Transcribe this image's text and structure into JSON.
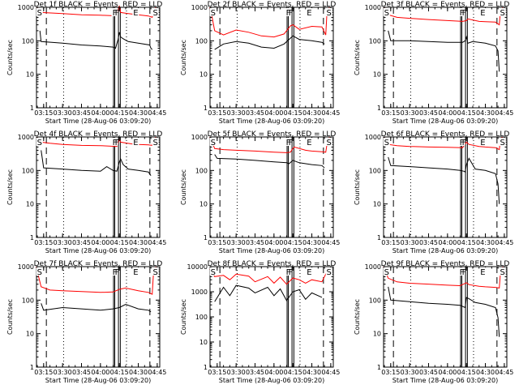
{
  "figure": {
    "x_ticks": [
      "03:15",
      "03:30",
      "03:45",
      "04:00",
      "04:15",
      "04:30",
      "04:45"
    ],
    "y_ticks": [
      "1",
      "10",
      "100",
      "1000"
    ],
    "y_ticks_det8": [
      "1",
      "10",
      "100",
      "1000",
      "10000"
    ],
    "xlabel": "Start Time (28-Aug-06 03:09:20)",
    "ylabel": "Counts/sec",
    "flag_labels": [
      "S",
      "F",
      "E",
      "S"
    ],
    "colors": {
      "events": "#000000",
      "lld": "#ff0000"
    }
  },
  "chart_data": [
    {
      "type": "line",
      "title": "Det 1f BLACK = Events, RED = LLD",
      "xlabel": "Start Time (28-Aug-06 03:09:20)",
      "ylabel": "Counts/sec",
      "yscale": "log",
      "ylim": [
        1,
        1000
      ],
      "x_start": "03:09:20",
      "x_end": "04:47:00",
      "series": [
        {
          "name": "Events",
          "x": [
            "03:12",
            "03:13",
            "03:30",
            "03:45",
            "04:00",
            "04:10",
            "04:12",
            "04:14",
            "04:15",
            "04:16",
            "04:18",
            "04:22",
            "04:30",
            "04:39",
            "04:40",
            "04:41"
          ],
          "y": [
            200,
            95,
            85,
            75,
            70,
            65,
            60,
            110,
            180,
            130,
            115,
            95,
            85,
            75,
            60,
            55
          ]
        },
        {
          "name": "LLD",
          "x": [
            "03:09",
            "03:11",
            "03:13",
            "03:30",
            "03:45",
            "04:00",
            "04:10",
            "04:13",
            "04:15",
            "04:16",
            "04:22",
            "04:30",
            "04:38",
            "04:41",
            "04:42",
            "04:43",
            "04:44"
          ],
          "y": [
            1000,
            900,
            700,
            650,
            600,
            580,
            560,
            600,
            1100,
            700,
            650,
            600,
            550,
            500,
            700,
            900,
            1000
          ]
        }
      ]
    },
    {
      "type": "line",
      "title": "Det 2f BLACK = Events, RED = LLD",
      "xlabel": "Start Time (28-Aug-06 03:09:20)",
      "ylabel": "Counts/sec",
      "yscale": "log",
      "ylim": [
        1,
        1000
      ],
      "x_start": "03:09:20",
      "x_end": "04:47:00",
      "series": [
        {
          "name": "Events",
          "x": [
            "03:13",
            "03:20",
            "03:30",
            "03:40",
            "03:50",
            "04:00",
            "04:08",
            "04:13",
            "04:15",
            "04:20",
            "04:30",
            "04:38",
            "04:40"
          ],
          "y": [
            55,
            80,
            95,
            85,
            65,
            60,
            80,
            120,
            140,
            110,
            100,
            90,
            80
          ]
        },
        {
          "name": "LLD",
          "x": [
            "03:09",
            "03:11",
            "03:13",
            "03:20",
            "03:30",
            "03:40",
            "03:50",
            "04:00",
            "04:08",
            "04:13",
            "04:15",
            "04:20",
            "04:30",
            "04:38",
            "04:41",
            "04:42",
            "04:44"
          ],
          "y": [
            1000,
            500,
            200,
            150,
            210,
            180,
            140,
            130,
            160,
            280,
            300,
            220,
            270,
            260,
            150,
            700,
            1000
          ]
        }
      ]
    },
    {
      "type": "line",
      "title": "Det 3f BLACK = Events, RED = LLD",
      "xlabel": "Start Time (28-Aug-06 03:09:20)",
      "ylabel": "Counts/sec",
      "yscale": "log",
      "ylim": [
        1,
        1000
      ],
      "x_start": "03:09:20",
      "x_end": "04:47:00",
      "series": [
        {
          "name": "Events",
          "x": [
            "03:13",
            "03:15",
            "03:30",
            "03:45",
            "04:00",
            "04:12",
            "04:14",
            "04:15",
            "04:16",
            "04:20",
            "04:30",
            "04:38",
            "04:40",
            "04:41"
          ],
          "y": [
            200,
            100,
            100,
            95,
            90,
            90,
            100,
            130,
            85,
            95,
            85,
            70,
            50,
            12
          ]
        },
        {
          "name": "LLD",
          "x": [
            "03:09",
            "03:11",
            "03:13",
            "03:20",
            "03:30",
            "03:45",
            "04:00",
            "04:12",
            "04:15",
            "04:16",
            "04:25",
            "04:30",
            "04:38",
            "04:41",
            "04:42",
            "04:44"
          ],
          "y": [
            1000,
            900,
            600,
            500,
            470,
            430,
            400,
            380,
            400,
            450,
            380,
            370,
            360,
            300,
            800,
            1000
          ]
        }
      ]
    },
    {
      "type": "line",
      "title": "Det 4f BLACK = Events, RED = LLD",
      "xlabel": "Start Time (28-Aug-06 03:09:20)",
      "ylabel": "Counts/sec",
      "yscale": "log",
      "ylim": [
        1,
        1000
      ],
      "x_start": "03:09:20",
      "x_end": "04:47:00",
      "series": [
        {
          "name": "Events",
          "x": [
            "03:13",
            "03:15",
            "03:30",
            "03:45",
            "04:00",
            "04:05",
            "04:10",
            "04:13",
            "04:15",
            "04:16",
            "04:18",
            "04:22",
            "04:30",
            "04:38",
            "04:40"
          ],
          "y": [
            400,
            120,
            110,
            100,
            95,
            130,
            100,
            95,
            180,
            220,
            150,
            110,
            100,
            90,
            70
          ]
        },
        {
          "name": "LLD",
          "x": [
            "03:09",
            "03:11",
            "03:13",
            "03:20",
            "03:30",
            "03:45",
            "04:00",
            "04:13",
            "04:15",
            "04:16",
            "04:25",
            "04:30",
            "04:38",
            "04:41",
            "04:42",
            "04:44"
          ],
          "y": [
            1000,
            900,
            700,
            650,
            600,
            560,
            550,
            520,
            850,
            700,
            620,
            600,
            580,
            560,
            800,
            1000
          ]
        }
      ]
    },
    {
      "type": "line",
      "title": "Det 5f BLACK = Events, RED = LLD",
      "xlabel": "Start Time (28-Aug-06 03:09:20)",
      "ylabel": "Counts/sec",
      "yscale": "log",
      "ylim": [
        1,
        1000
      ],
      "x_start": "03:09:20",
      "x_end": "04:47:00",
      "series": [
        {
          "name": "Events",
          "x": [
            "03:13",
            "03:15",
            "03:30",
            "03:45",
            "04:00",
            "04:10",
            "04:12",
            "04:15",
            "04:20",
            "04:30",
            "04:38",
            "04:40"
          ],
          "y": [
            300,
            230,
            220,
            200,
            180,
            170,
            160,
            200,
            170,
            150,
            140,
            120
          ]
        },
        {
          "name": "LLD",
          "x": [
            "03:09",
            "03:11",
            "03:13",
            "03:20",
            "03:30",
            "03:45",
            "04:00",
            "04:10",
            "04:13",
            "04:15",
            "04:16",
            "04:25",
            "04:30",
            "04:38",
            "04:41",
            "04:42",
            "04:44"
          ],
          "y": [
            1000,
            700,
            450,
            420,
            400,
            380,
            350,
            340,
            350,
            450,
            500,
            400,
            380,
            360,
            350,
            600,
            1000
          ]
        }
      ]
    },
    {
      "type": "line",
      "title": "Det 6f BLACK = Events, RED = LLD",
      "xlabel": "Start Time (28-Aug-06 03:09:20)",
      "ylabel": "Counts/sec",
      "yscale": "log",
      "ylim": [
        1,
        1000
      ],
      "x_start": "03:09:20",
      "x_end": "04:47:00",
      "series": [
        {
          "name": "Events",
          "x": [
            "03:13",
            "03:15",
            "03:30",
            "03:45",
            "04:00",
            "04:10",
            "04:13",
            "04:14",
            "04:15",
            "04:17",
            "04:22",
            "04:30",
            "04:38",
            "04:40",
            "04:41"
          ],
          "y": [
            250,
            140,
            130,
            120,
            110,
            100,
            95,
            90,
            150,
            230,
            110,
            100,
            80,
            40,
            10
          ]
        },
        {
          "name": "LLD",
          "x": [
            "03:09",
            "03:11",
            "03:13",
            "03:20",
            "03:30",
            "03:45",
            "04:00",
            "04:12",
            "04:15",
            "04:17",
            "04:25",
            "04:30",
            "04:38",
            "04:41",
            "04:42",
            "04:44"
          ],
          "y": [
            1000,
            900,
            600,
            550,
            520,
            500,
            490,
            480,
            700,
            600,
            520,
            500,
            480,
            420,
            900,
            1000
          ]
        }
      ]
    },
    {
      "type": "line",
      "title": "Det 7f BLACK = Events, RED = LLD",
      "xlabel": "Start Time (28-Aug-06 03:09:20)",
      "ylabel": "Counts/sec",
      "yscale": "log",
      "ylim": [
        1,
        1000
      ],
      "x_start": "03:09:20",
      "x_end": "04:47:00",
      "series": [
        {
          "name": "Events",
          "x": [
            "03:13",
            "03:15",
            "03:30",
            "03:45",
            "04:00",
            "04:10",
            "04:15",
            "04:20",
            "04:30",
            "04:38",
            "04:40"
          ],
          "y": [
            80,
            50,
            60,
            55,
            50,
            55,
            60,
            75,
            55,
            50,
            45
          ]
        },
        {
          "name": "LLD",
          "x": [
            "03:09",
            "03:11",
            "03:13",
            "03:20",
            "03:30",
            "03:45",
            "04:00",
            "04:10",
            "04:15",
            "04:20",
            "04:30",
            "04:38",
            "04:41",
            "04:42",
            "04:44"
          ],
          "y": [
            1000,
            500,
            250,
            200,
            190,
            180,
            170,
            175,
            210,
            230,
            190,
            170,
            150,
            600,
            1000
          ]
        }
      ]
    },
    {
      "type": "line",
      "title": "Det 8f BLACK = Events, RED = LLD",
      "xlabel": "Start Time (28-Aug-06 03:09:20)",
      "ylabel": "Counts/sec",
      "yscale": "log",
      "ylim": [
        1,
        10000
      ],
      "x_start": "03:09:20",
      "x_end": "04:47:00",
      "series": [
        {
          "name": "Events",
          "x": [
            "03:13",
            "03:20",
            "03:25",
            "03:30",
            "03:40",
            "03:45",
            "03:55",
            "04:00",
            "04:05",
            "04:10",
            "04:15",
            "04:20",
            "04:25",
            "04:30",
            "04:38"
          ],
          "y": [
            400,
            1500,
            700,
            1800,
            1400,
            900,
            1500,
            700,
            1300,
            450,
            1000,
            1200,
            500,
            900,
            600
          ]
        },
        {
          "name": "LLD",
          "x": [
            "03:09",
            "03:13",
            "03:20",
            "03:25",
            "03:30",
            "03:40",
            "03:45",
            "03:55",
            "04:00",
            "04:05",
            "04:10",
            "04:15",
            "04:20",
            "04:25",
            "04:30",
            "04:38",
            "04:41",
            "04:44"
          ],
          "y": [
            8000,
            4000,
            4500,
            3000,
            5000,
            4200,
            2500,
            4000,
            2200,
            3800,
            2000,
            3500,
            3000,
            2200,
            3000,
            2500,
            5000,
            9000
          ]
        }
      ]
    },
    {
      "type": "line",
      "title": "Det 9f BLACK = Events, RED = LLD",
      "xlabel": "Start Time (28-Aug-06 03:09:20)",
      "ylabel": "Counts/sec",
      "yscale": "log",
      "ylim": [
        1,
        1000
      ],
      "x_start": "03:09:20",
      "x_end": "04:47:00",
      "series": [
        {
          "name": "Events",
          "x": [
            "03:13",
            "03:15",
            "03:30",
            "03:45",
            "04:00",
            "04:10",
            "04:14",
            "04:15",
            "04:17",
            "04:22",
            "04:30",
            "04:38",
            "04:40",
            "04:41"
          ],
          "y": [
            250,
            100,
            90,
            80,
            75,
            70,
            60,
            120,
            110,
            85,
            75,
            60,
            30,
            8
          ]
        },
        {
          "name": "LLD",
          "x": [
            "03:09",
            "03:11",
            "03:13",
            "03:20",
            "03:30",
            "03:45",
            "04:00",
            "04:10",
            "04:15",
            "04:17",
            "04:25",
            "04:30",
            "04:38",
            "04:41",
            "04:42",
            "04:44"
          ],
          "y": [
            1000,
            700,
            450,
            350,
            320,
            300,
            280,
            270,
            330,
            290,
            260,
            250,
            240,
            230,
            700,
            1000
          ]
        }
      ]
    }
  ]
}
